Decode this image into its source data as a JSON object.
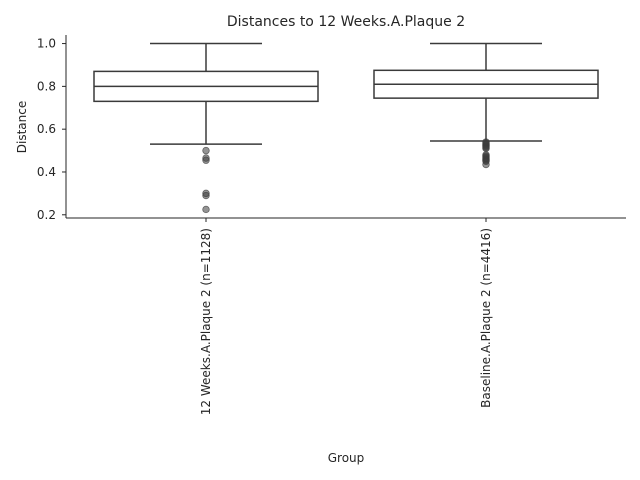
{
  "chart_data": {
    "type": "box",
    "title": "Distances to 12 Weeks.A.Plaque 2",
    "xlabel": "Group",
    "ylabel": "Distance",
    "ylim": [
      0.185,
      1.04
    ],
    "yticks": [
      0.2,
      0.4,
      0.6,
      0.8,
      1.0
    ],
    "ytick_labels": [
      "0.2",
      "0.4",
      "0.6",
      "0.8",
      "1.0"
    ],
    "grid": false,
    "categories": [
      "12 Weeks.A.Plaque 2 (n=1128)",
      "Baseline.A.Plaque 2 (n=4416)"
    ],
    "boxes": [
      {
        "label": "12 Weeks.A.Plaque 2 (n=1128)",
        "whisker_low": 0.53,
        "q1": 0.73,
        "median": 0.8,
        "q3": 0.87,
        "whisker_high": 1.0,
        "outliers": [
          0.5,
          0.465,
          0.455,
          0.3,
          0.29,
          0.225
        ]
      },
      {
        "label": "Baseline.A.Plaque 2 (n=4416)",
        "whisker_low": 0.545,
        "q1": 0.745,
        "median": 0.81,
        "q3": 0.875,
        "whisker_high": 1.0,
        "outliers": [
          0.54,
          0.535,
          0.53,
          0.525,
          0.52,
          0.515,
          0.51,
          0.48,
          0.475,
          0.47,
          0.465,
          0.46,
          0.455,
          0.45,
          0.435
        ]
      }
    ]
  }
}
